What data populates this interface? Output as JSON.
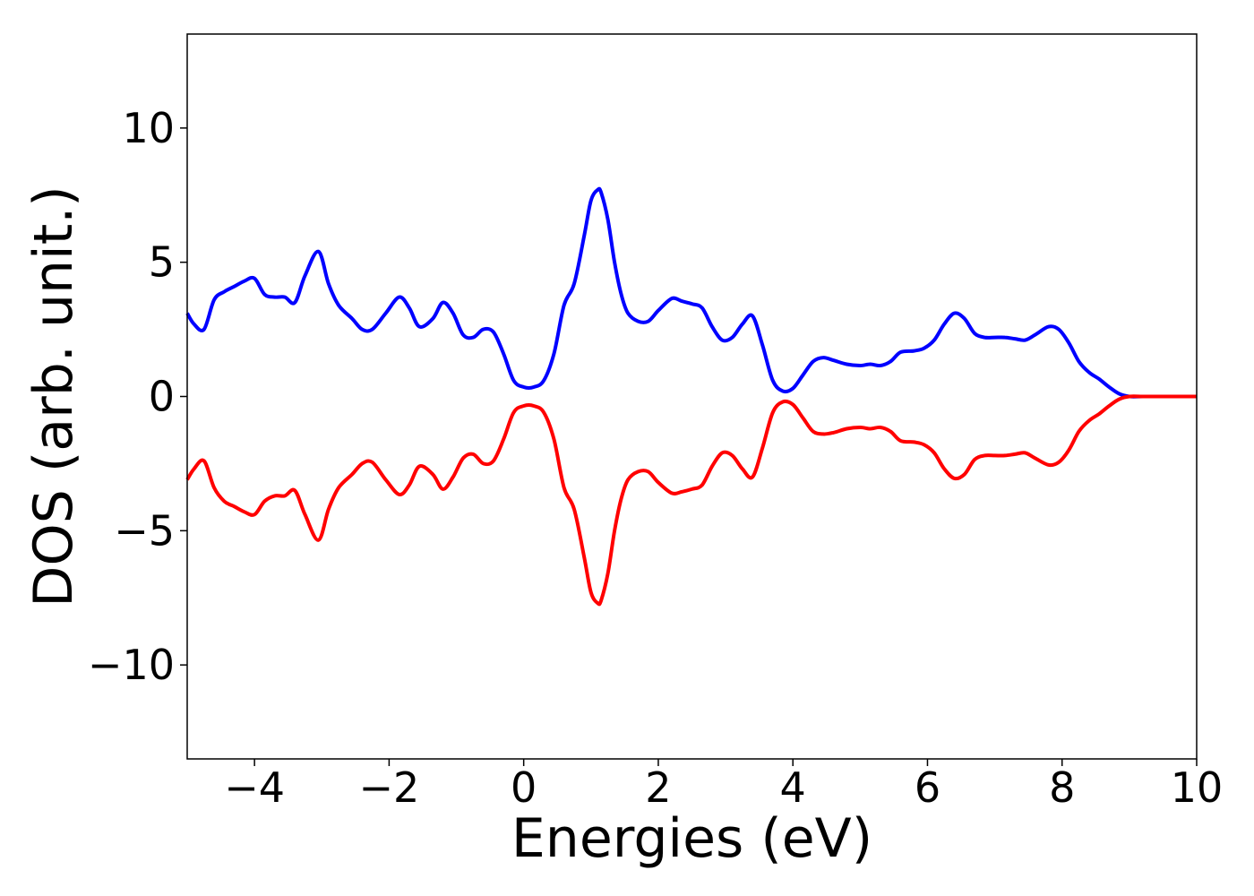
{
  "chart_data": {
    "type": "line",
    "xlabel": "Energies (eV)",
    "ylabel": "DOS (arb. unit.)",
    "xlim": [
      -5,
      10
    ],
    "ylim": [
      -13.5,
      13.5
    ],
    "xticks": [
      -4,
      -2,
      0,
      2,
      4,
      6,
      8,
      10
    ],
    "xtick_labels": [
      "−4",
      "−2",
      "0",
      "2",
      "4",
      "6",
      "8",
      "10"
    ],
    "yticks": [
      -10,
      -5,
      0,
      5,
      10
    ],
    "ytick_labels": [
      "−10",
      "−5",
      "0",
      "5",
      "10"
    ],
    "grid": false,
    "series": [
      {
        "color": "#0000ff",
        "x": [
          -5.0,
          -4.9,
          -4.75,
          -4.6,
          -4.45,
          -4.3,
          -4.15,
          -4.0,
          -3.85,
          -3.7,
          -3.55,
          -3.4,
          -3.25,
          -3.05,
          -2.9,
          -2.75,
          -2.55,
          -2.4,
          -2.25,
          -2.05,
          -1.85,
          -1.7,
          -1.55,
          -1.35,
          -1.2,
          -1.05,
          -0.9,
          -0.75,
          -0.6,
          -0.45,
          -0.3,
          -0.15,
          0.0,
          0.15,
          0.3,
          0.45,
          0.6,
          0.75,
          0.9,
          1.0,
          1.1,
          1.15,
          1.25,
          1.35,
          1.45,
          1.55,
          1.7,
          1.85,
          2.0,
          2.2,
          2.35,
          2.5,
          2.65,
          2.8,
          2.95,
          3.1,
          3.25,
          3.4,
          3.55,
          3.7,
          3.85,
          4.0,
          4.15,
          4.3,
          4.45,
          4.6,
          4.8,
          5.0,
          5.15,
          5.3,
          5.45,
          5.6,
          5.8,
          5.95,
          6.1,
          6.25,
          6.4,
          6.55,
          6.7,
          6.85,
          7.0,
          7.15,
          7.3,
          7.45,
          7.6,
          7.8,
          7.95,
          8.1,
          8.25,
          8.4,
          8.55,
          8.7,
          8.85,
          9.0,
          9.2,
          9.5,
          10.0
        ],
        "values": [
          3.1,
          2.7,
          2.5,
          3.6,
          3.9,
          4.1,
          4.3,
          4.4,
          3.8,
          3.7,
          3.7,
          3.5,
          4.5,
          5.4,
          4.2,
          3.4,
          2.9,
          2.5,
          2.5,
          3.1,
          3.7,
          3.3,
          2.6,
          2.9,
          3.5,
          3.1,
          2.3,
          2.2,
          2.5,
          2.4,
          1.6,
          0.6,
          0.35,
          0.35,
          0.6,
          1.6,
          3.4,
          4.2,
          6.0,
          7.3,
          7.7,
          7.6,
          6.6,
          5.0,
          3.8,
          3.1,
          2.8,
          2.8,
          3.2,
          3.65,
          3.55,
          3.45,
          3.3,
          2.6,
          2.1,
          2.2,
          2.7,
          3.0,
          1.9,
          0.6,
          0.2,
          0.3,
          0.8,
          1.3,
          1.45,
          1.35,
          1.2,
          1.15,
          1.2,
          1.15,
          1.3,
          1.65,
          1.7,
          1.8,
          2.1,
          2.7,
          3.1,
          2.9,
          2.35,
          2.2,
          2.2,
          2.2,
          2.15,
          2.1,
          2.3,
          2.6,
          2.5,
          2.0,
          1.3,
          0.9,
          0.65,
          0.35,
          0.1,
          0.0,
          0.0,
          0.0,
          0.0
        ]
      },
      {
        "color": "#ff0000",
        "x": [
          -5.0,
          -4.9,
          -4.75,
          -4.6,
          -4.45,
          -4.3,
          -4.15,
          -4.0,
          -3.85,
          -3.7,
          -3.55,
          -3.4,
          -3.25,
          -3.05,
          -2.9,
          -2.75,
          -2.55,
          -2.4,
          -2.25,
          -2.05,
          -1.85,
          -1.7,
          -1.55,
          -1.35,
          -1.2,
          -1.05,
          -0.9,
          -0.75,
          -0.6,
          -0.45,
          -0.3,
          -0.15,
          0.0,
          0.15,
          0.3,
          0.45,
          0.6,
          0.75,
          0.9,
          1.0,
          1.1,
          1.15,
          1.25,
          1.35,
          1.45,
          1.55,
          1.7,
          1.85,
          2.0,
          2.2,
          2.35,
          2.5,
          2.65,
          2.8,
          2.95,
          3.1,
          3.25,
          3.4,
          3.55,
          3.7,
          3.85,
          4.0,
          4.15,
          4.3,
          4.45,
          4.6,
          4.8,
          5.0,
          5.15,
          5.3,
          5.45,
          5.6,
          5.8,
          5.95,
          6.1,
          6.25,
          6.4,
          6.55,
          6.7,
          6.85,
          7.0,
          7.15,
          7.3,
          7.45,
          7.6,
          7.8,
          7.95,
          8.1,
          8.25,
          8.4,
          8.55,
          8.7,
          8.85,
          9.0,
          9.2,
          9.5,
          10.0
        ],
        "values": [
          -3.1,
          -2.7,
          -2.4,
          -3.4,
          -3.9,
          -4.1,
          -4.3,
          -4.4,
          -3.9,
          -3.7,
          -3.7,
          -3.5,
          -4.4,
          -5.35,
          -4.2,
          -3.4,
          -2.9,
          -2.5,
          -2.45,
          -3.1,
          -3.65,
          -3.3,
          -2.6,
          -2.9,
          -3.45,
          -3.0,
          -2.3,
          -2.15,
          -2.5,
          -2.4,
          -1.6,
          -0.6,
          -0.35,
          -0.35,
          -0.6,
          -1.6,
          -3.4,
          -4.2,
          -6.0,
          -7.3,
          -7.7,
          -7.6,
          -6.6,
          -5.0,
          -3.8,
          -3.1,
          -2.8,
          -2.8,
          -3.2,
          -3.6,
          -3.55,
          -3.45,
          -3.3,
          -2.6,
          -2.1,
          -2.2,
          -2.7,
          -3.0,
          -1.9,
          -0.6,
          -0.2,
          -0.3,
          -0.8,
          -1.3,
          -1.4,
          -1.35,
          -1.2,
          -1.15,
          -1.2,
          -1.15,
          -1.3,
          -1.65,
          -1.7,
          -1.8,
          -2.1,
          -2.7,
          -3.05,
          -2.9,
          -2.35,
          -2.2,
          -2.2,
          -2.2,
          -2.15,
          -2.1,
          -2.3,
          -2.55,
          -2.45,
          -2.0,
          -1.3,
          -0.9,
          -0.65,
          -0.35,
          -0.1,
          0.0,
          0.0,
          0.0,
          0.0
        ]
      }
    ]
  }
}
